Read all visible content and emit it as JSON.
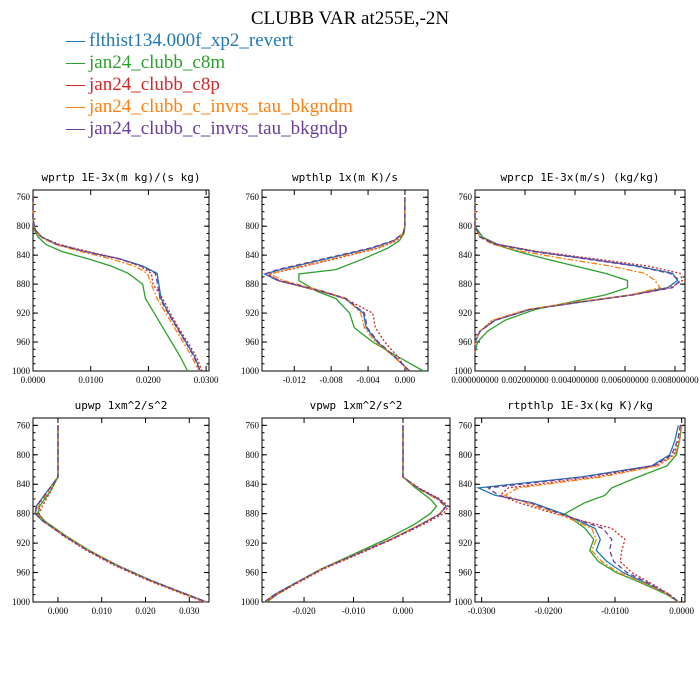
{
  "title": "CLUBB VAR at255E,-2N",
  "legend": [
    {
      "name": "flthist134.000f_xp2_revert",
      "color": "#1f77b4",
      "style": "solid"
    },
    {
      "name": "jan24_clubb_c8m",
      "color": "#2ca02c",
      "style": "solid"
    },
    {
      "name": "jan24_clubb_c8p",
      "color": "#d62728",
      "style": "dotted"
    },
    {
      "name": "jan24_clubb_c_invrs_tau_bkgndm",
      "color": "#ff7f0e",
      "style": "dashdot"
    },
    {
      "name": "jan24_clubb_c_invrs_tau_bkgndp",
      "color": "#6a3d9a",
      "style": "dashed"
    }
  ],
  "chart_data": [
    {
      "type": "line",
      "title": "wprtp  1E-3x(m kg)/(s kg)",
      "xlim": [
        0,
        0.0305
      ],
      "xticks": [
        "0.0000",
        "0.0100",
        "0.0200",
        "0.0300"
      ],
      "xtick_values": [
        0,
        0.01,
        0.02,
        0.03
      ],
      "ylim": [
        750,
        1000
      ],
      "yticks": [
        760,
        800,
        840,
        880,
        920,
        960,
        1000
      ],
      "y": [
        760,
        790,
        805,
        815,
        825,
        835,
        845,
        855,
        865,
        880,
        900,
        920,
        940,
        960,
        980,
        1000
      ],
      "series": [
        {
          "values": [
            0,
            0,
            0.0004,
            0.0015,
            0.004,
            0.009,
            0.015,
            0.019,
            0.0215,
            0.0218,
            0.0222,
            0.0235,
            0.025,
            0.0265,
            0.028,
            0.029
          ]
        },
        {
          "values": [
            0,
            0,
            0.0002,
            0.0009,
            0.0022,
            0.005,
            0.0095,
            0.0135,
            0.0165,
            0.019,
            0.0195,
            0.021,
            0.0225,
            0.024,
            0.0255,
            0.0268
          ]
        },
        {
          "values": [
            0,
            0,
            0.0004,
            0.0015,
            0.0045,
            0.0095,
            0.015,
            0.0185,
            0.0205,
            0.0208,
            0.0225,
            0.0238,
            0.0252,
            0.0268,
            0.0283,
            0.0293
          ]
        },
        {
          "values": [
            0,
            0,
            0.0003,
            0.0013,
            0.0038,
            0.0082,
            0.0135,
            0.0175,
            0.0198,
            0.0205,
            0.0215,
            0.023,
            0.0245,
            0.026,
            0.0275,
            0.0287
          ]
        },
        {
          "values": [
            0,
            0,
            0.0004,
            0.0015,
            0.0042,
            0.009,
            0.0148,
            0.0188,
            0.0212,
            0.0216,
            0.022,
            0.0234,
            0.0249,
            0.0264,
            0.0279,
            0.0289
          ]
        }
      ]
    },
    {
      "type": "line",
      "title": "wpthlp  1x(m K)/s",
      "xlim": [
        -0.0155,
        0.0025
      ],
      "xticks": [
        "-0.012",
        "-0.008",
        "-0.004",
        "0.000"
      ],
      "xtick_values": [
        -0.012,
        -0.008,
        -0.004,
        0
      ],
      "ylim": [
        750,
        1000
      ],
      "yticks": [
        760,
        800,
        840,
        880,
        920,
        960,
        1000
      ],
      "y": [
        760,
        800,
        810,
        820,
        830,
        845,
        860,
        866,
        875,
        890,
        900,
        920,
        940,
        960,
        980,
        1000
      ],
      "series": [
        {
          "values": [
            0,
            0,
            -0.0002,
            -0.0012,
            -0.0035,
            -0.0085,
            -0.0135,
            -0.0152,
            -0.0138,
            -0.009,
            -0.0065,
            -0.0045,
            -0.0042,
            -0.003,
            -0.0012,
            0.0005
          ]
        },
        {
          "values": [
            0,
            0,
            -0.0001,
            -0.0006,
            -0.0018,
            -0.0045,
            -0.0075,
            -0.0115,
            -0.0115,
            -0.0095,
            -0.0075,
            -0.006,
            -0.0055,
            -0.0035,
            -0.0008,
            0.002
          ]
        },
        {
          "values": [
            0,
            0,
            -0.0001,
            -0.0009,
            -0.0028,
            -0.0075,
            -0.0125,
            -0.0148,
            -0.0138,
            -0.0092,
            -0.0065,
            -0.0035,
            -0.0032,
            -0.0022,
            -0.0008,
            0.0003
          ]
        },
        {
          "values": [
            0,
            0,
            -0.0002,
            -0.001,
            -0.003,
            -0.0078,
            -0.0128,
            -0.0146,
            -0.0132,
            -0.0088,
            -0.0063,
            -0.0048,
            -0.0044,
            -0.0032,
            -0.0012,
            0.0004
          ]
        },
        {
          "values": [
            0,
            0,
            -0.0002,
            -0.0013,
            -0.0037,
            -0.0088,
            -0.0138,
            -0.0152,
            -0.0136,
            -0.0089,
            -0.0064,
            -0.0044,
            -0.0041,
            -0.0029,
            -0.0011,
            0.0005
          ]
        }
      ]
    },
    {
      "type": "line",
      "title": "wprcp  1E-3x(m/s) (kg/kg)",
      "xlim": [
        0,
        0.0084
      ],
      "xticks": [
        "0.000000000",
        "0.002000000",
        "0.004000000",
        "0.006000000",
        "0.008000000"
      ],
      "xtick_values": [
        0,
        0.002,
        0.004,
        0.006,
        0.008
      ],
      "ylim": [
        750,
        1000
      ],
      "yticks": [
        760,
        800,
        840,
        880,
        920,
        960,
        1000
      ],
      "y": [
        760,
        800,
        815,
        825,
        835,
        845,
        855,
        865,
        875,
        885,
        895,
        905,
        915,
        930,
        945,
        960,
        975
      ],
      "series": [
        {
          "values": [
            0,
            0,
            0.0003,
            0.0009,
            0.0024,
            0.0045,
            0.0065,
            0.0079,
            0.0081,
            0.0077,
            0.0062,
            0.0042,
            0.0022,
            0.0008,
            0.0002,
            0,
            0
          ]
        },
        {
          "values": [
            0,
            0,
            0.0003,
            0.0008,
            0.0017,
            0.0028,
            0.004,
            0.0052,
            0.0061,
            0.0061,
            0.0052,
            0.0038,
            0.0024,
            0.0012,
            0.0005,
            0.0001,
            0
          ]
        },
        {
          "values": [
            0,
            0,
            0.0002,
            0.0009,
            0.0025,
            0.0048,
            0.0069,
            0.0082,
            0.0083,
            0.0078,
            0.0063,
            0.0041,
            0.0021,
            0.0007,
            0.0002,
            0,
            0
          ]
        },
        {
          "values": [
            0,
            0,
            0.0002,
            0.0007,
            0.0019,
            0.0036,
            0.0054,
            0.0068,
            0.0072,
            0.0074,
            0.0062,
            0.004,
            0.0021,
            0.0007,
            0.0002,
            0,
            0
          ]
        },
        {
          "values": [
            0,
            0,
            0.0002,
            0.0008,
            0.0023,
            0.0044,
            0.0064,
            0.0078,
            0.0082,
            0.0079,
            0.0063,
            0.0042,
            0.0022,
            0.0008,
            0.0002,
            0,
            0
          ]
        }
      ]
    },
    {
      "type": "line",
      "title": "upwp  1xm^2/s^2",
      "xlim": [
        -0.0057,
        0.0345
      ],
      "xticks": [
        "0.000",
        "0.010",
        "0.020",
        "0.030"
      ],
      "xtick_values": [
        0,
        0.01,
        0.02,
        0.03
      ],
      "ylim": [
        750,
        1000
      ],
      "yticks": [
        760,
        800,
        840,
        880,
        920,
        960,
        1000
      ],
      "y": [
        760,
        830,
        850,
        870,
        880,
        890,
        910,
        930,
        950,
        970,
        985,
        1000
      ],
      "series": [
        {
          "values": [
            0,
            0,
            -0.0025,
            -0.005,
            -0.0052,
            -0.0035,
            0.0015,
            0.007,
            0.0135,
            0.021,
            0.0275,
            0.034
          ]
        },
        {
          "values": [
            0,
            0,
            -0.0018,
            -0.0042,
            -0.0045,
            -0.003,
            0.0018,
            0.0072,
            0.0135,
            0.0208,
            0.0272,
            0.0338
          ]
        },
        {
          "values": [
            0,
            0,
            -0.0017,
            -0.0036,
            -0.0043,
            -0.0033,
            0.0012,
            0.0065,
            0.0128,
            0.0203,
            0.0268,
            0.0335
          ]
        },
        {
          "values": [
            0,
            0,
            -0.0022,
            -0.0045,
            -0.0048,
            -0.0033,
            0.0015,
            0.007,
            0.0133,
            0.0207,
            0.0272,
            0.0338
          ]
        },
        {
          "values": [
            0,
            0,
            -0.0024,
            -0.0049,
            -0.0051,
            -0.0034,
            0.0014,
            0.0068,
            0.0132,
            0.0207,
            0.0273,
            0.0339
          ]
        }
      ]
    },
    {
      "type": "line",
      "title": "vpwp  1xm^2/s^2",
      "xlim": [
        -0.0285,
        0.0095
      ],
      "xticks": [
        "-0.020",
        "-0.010",
        "0.000"
      ],
      "xtick_values": [
        -0.02,
        -0.01,
        0
      ],
      "ylim": [
        750,
        1000
      ],
      "yticks": [
        760,
        800,
        840,
        880,
        920,
        960,
        1000
      ],
      "y": [
        760,
        830,
        845,
        860,
        870,
        880,
        895,
        915,
        935,
        955,
        975,
        990,
        1000
      ],
      "series": [
        {
          "values": [
            0,
            0,
            0.003,
            0.0072,
            0.0088,
            0.0075,
            0.0035,
            -0.0025,
            -0.0095,
            -0.0165,
            -0.022,
            -0.026,
            -0.028
          ]
        },
        {
          "values": [
            0,
            0,
            0.0025,
            0.0055,
            0.0068,
            0.0055,
            0.0022,
            -0.0035,
            -0.01,
            -0.0165,
            -0.0218,
            -0.0255,
            -0.0275
          ]
        },
        {
          "values": [
            0,
            0,
            0.0032,
            0.0075,
            0.0092,
            0.0082,
            0.004,
            -0.0022,
            -0.009,
            -0.016,
            -0.0215,
            -0.0255,
            -0.0277
          ]
        },
        {
          "values": [
            0,
            0,
            0.0028,
            0.0068,
            0.0085,
            0.0074,
            0.0034,
            -0.0026,
            -0.0095,
            -0.0163,
            -0.0218,
            -0.0258,
            -0.0279
          ]
        },
        {
          "values": [
            0,
            0,
            0.003,
            0.0071,
            0.0087,
            0.0076,
            0.0036,
            -0.0024,
            -0.0094,
            -0.0164,
            -0.0219,
            -0.0259,
            -0.0281
          ]
        }
      ]
    },
    {
      "type": "line",
      "title": "rtpthlp  1E-3x(kg K)/kg",
      "xlim": [
        -0.031,
        0.0005
      ],
      "xticks": [
        "-0.0300",
        "-0.0200",
        "-0.0100",
        "0.0000"
      ],
      "xtick_values": [
        -0.03,
        -0.02,
        -0.01,
        0
      ],
      "ylim": [
        750,
        1000
      ],
      "yticks": [
        760,
        800,
        840,
        880,
        920,
        960,
        1000
      ],
      "y": [
        760,
        780,
        800,
        815,
        830,
        845,
        855,
        865,
        880,
        900,
        915,
        930,
        945,
        960,
        975,
        990,
        1000
      ],
      "series": [
        {
          "values": [
            -0.0005,
            -0.001,
            -0.0018,
            -0.0045,
            -0.015,
            -0.0305,
            -0.028,
            -0.0225,
            -0.0178,
            -0.013,
            -0.0122,
            -0.0128,
            -0.0112,
            -0.0088,
            -0.0052,
            -0.002,
            -0.0005
          ]
        },
        {
          "values": [
            0,
            -0.0003,
            -0.0008,
            -0.0022,
            -0.0065,
            -0.0105,
            -0.0115,
            -0.0145,
            -0.0175,
            -0.0145,
            -0.0132,
            -0.0138,
            -0.0125,
            -0.0098,
            -0.0058,
            -0.0022,
            -0.0005
          ]
        },
        {
          "values": [
            0,
            -0.0004,
            -0.0012,
            -0.004,
            -0.013,
            -0.026,
            -0.0272,
            -0.0245,
            -0.019,
            -0.0105,
            -0.0085,
            -0.009,
            -0.0092,
            -0.0075,
            -0.0045,
            -0.0018,
            -0.0004
          ]
        },
        {
          "values": [
            0,
            -0.0003,
            -0.001,
            -0.0035,
            -0.012,
            -0.0245,
            -0.0265,
            -0.0235,
            -0.0185,
            -0.0135,
            -0.0128,
            -0.0135,
            -0.012,
            -0.0095,
            -0.0055,
            -0.002,
            -0.0005
          ]
        },
        {
          "values": [
            -0.0002,
            -0.0006,
            -0.0015,
            -0.0042,
            -0.0145,
            -0.029,
            -0.0275,
            -0.0228,
            -0.0182,
            -0.0118,
            -0.0105,
            -0.0108,
            -0.0102,
            -0.0082,
            -0.0048,
            -0.0019,
            -0.0004
          ]
        }
      ]
    }
  ]
}
